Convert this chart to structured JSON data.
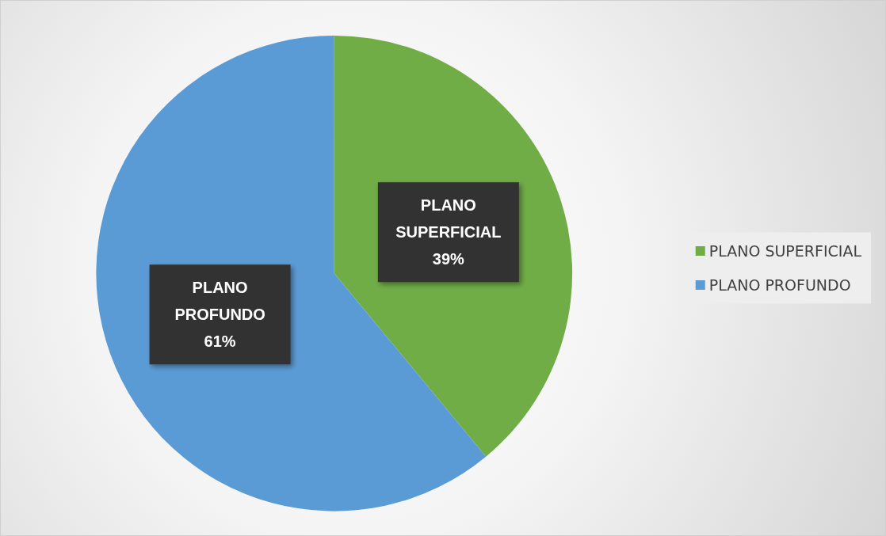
{
  "chart_data": {
    "type": "pie",
    "categories": [
      "PLANO SUPERFICIAL",
      "PLANO PROFUNDO"
    ],
    "values": [
      39,
      61
    ],
    "colors": [
      "#70ad47",
      "#5b9bd5"
    ],
    "value_labels": [
      "PLANO SUPERFICIAL 39%",
      "PLANO PROFUNDO 61%"
    ],
    "legend": "right"
  }
}
